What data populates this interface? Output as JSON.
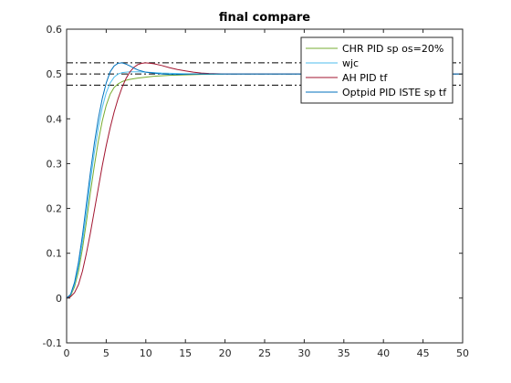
{
  "chart_data": {
    "type": "line",
    "title": "final compare",
    "xlabel": "",
    "ylabel": "",
    "xlim": [
      0,
      50
    ],
    "ylim": [
      -0.1,
      0.6
    ],
    "xticks": [
      0,
      5,
      10,
      15,
      20,
      25,
      30,
      35,
      40,
      45,
      50
    ],
    "yticks": [
      -0.1,
      0,
      0.1,
      0.2,
      0.3,
      0.4,
      0.5,
      0.6
    ],
    "grid": false,
    "legend_position": "top-right",
    "reference_lines": [
      {
        "y": 0.6,
        "style": "dash-dot",
        "color": "#000000"
      },
      {
        "y": 0.525,
        "style": "dash-dot",
        "color": "#000000"
      },
      {
        "y": 0.5,
        "style": "dash-dot",
        "color": "#000000"
      },
      {
        "y": 0.475,
        "style": "dash-dot",
        "color": "#000000"
      }
    ],
    "series": [
      {
        "name": "CHR PID sp os=20%",
        "color": "#77AC30",
        "x": [
          0,
          0.5,
          1,
          1.5,
          2,
          2.5,
          3,
          3.5,
          4,
          4.5,
          5,
          5.5,
          6,
          6.5,
          7,
          7.5,
          8,
          9,
          10,
          11,
          12,
          13,
          15,
          17,
          20,
          25,
          30,
          40,
          50
        ],
        "values": [
          0,
          0.005,
          0.025,
          0.06,
          0.11,
          0.17,
          0.235,
          0.295,
          0.35,
          0.395,
          0.43,
          0.455,
          0.47,
          0.478,
          0.483,
          0.486,
          0.488,
          0.491,
          0.493,
          0.495,
          0.496,
          0.497,
          0.498,
          0.499,
          0.5,
          0.5,
          0.5,
          0.5,
          0.5
        ]
      },
      {
        "name": "wjc",
        "color": "#4DBEEE",
        "x": [
          0,
          0.5,
          1,
          1.5,
          2,
          2.5,
          3,
          3.5,
          4,
          4.5,
          5,
          5.5,
          6,
          6.5,
          7,
          8,
          9,
          10,
          11,
          12,
          14,
          16,
          18,
          20,
          25,
          30,
          40,
          50
        ],
        "values": [
          0,
          0.007,
          0.03,
          0.07,
          0.125,
          0.19,
          0.26,
          0.325,
          0.38,
          0.425,
          0.458,
          0.48,
          0.493,
          0.5,
          0.503,
          0.505,
          0.505,
          0.504,
          0.503,
          0.502,
          0.501,
          0.5,
          0.5,
          0.5,
          0.5,
          0.5,
          0.5,
          0.5
        ]
      },
      {
        "name": "AH PID tf",
        "color": "#A2142F",
        "x": [
          0,
          0.5,
          1,
          1.5,
          2,
          2.5,
          3,
          3.5,
          4,
          4.5,
          5,
          5.5,
          6,
          6.5,
          7,
          7.5,
          8,
          8.5,
          9,
          9.5,
          10,
          11,
          12,
          13,
          14,
          15,
          16,
          17,
          18,
          20,
          22,
          25,
          30,
          40,
          50
        ],
        "values": [
          0,
          0.003,
          0.012,
          0.03,
          0.06,
          0.1,
          0.145,
          0.195,
          0.245,
          0.295,
          0.34,
          0.38,
          0.415,
          0.445,
          0.47,
          0.49,
          0.505,
          0.515,
          0.521,
          0.524,
          0.525,
          0.523,
          0.519,
          0.514,
          0.51,
          0.507,
          0.504,
          0.502,
          0.501,
          0.5,
          0.5,
          0.5,
          0.5,
          0.5,
          0.5
        ]
      },
      {
        "name": "Optpid PID ISTE sp tf",
        "color": "#0072BD",
        "x": [
          0,
          0.5,
          1,
          1.5,
          2,
          2.5,
          3,
          3.5,
          4,
          4.5,
          5,
          5.5,
          6,
          6.5,
          7,
          7.5,
          8,
          8.5,
          9,
          10,
          11,
          12,
          13,
          14,
          16,
          18,
          20,
          25,
          30,
          40,
          50
        ],
        "values": [
          0,
          0.008,
          0.035,
          0.08,
          0.14,
          0.21,
          0.28,
          0.345,
          0.4,
          0.445,
          0.48,
          0.505,
          0.518,
          0.524,
          0.525,
          0.522,
          0.518,
          0.513,
          0.509,
          0.504,
          0.502,
          0.5,
          0.499,
          0.499,
          0.5,
          0.5,
          0.5,
          0.5,
          0.5,
          0.5,
          0.5
        ]
      }
    ]
  }
}
